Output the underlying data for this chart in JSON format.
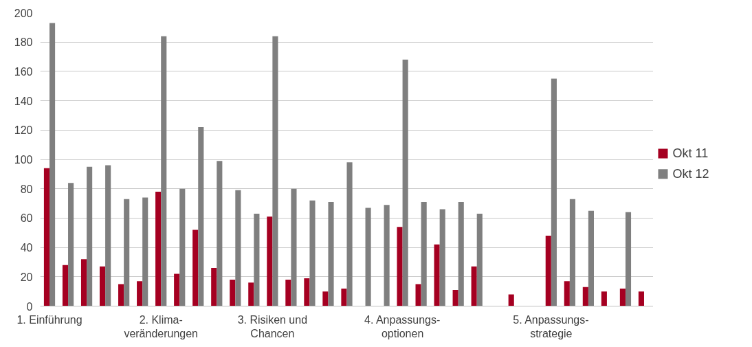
{
  "chart_data": {
    "type": "bar",
    "categories": [
      "1. Einführung",
      null,
      null,
      null,
      null,
      null,
      "2. Klima-\nveränderungen",
      null,
      null,
      null,
      null,
      null,
      "3. Risiken und\nChancen",
      null,
      null,
      null,
      null,
      null,
      null,
      "4. Anpassungs-\noptionen",
      null,
      null,
      null,
      null,
      null,
      null,
      null,
      "5. Anpassungs-\nstrategie",
      null,
      null,
      null,
      null,
      null
    ],
    "series": [
      {
        "name": "Okt 11",
        "color": "#a50021",
        "values": [
          94,
          28,
          32,
          27,
          15,
          17,
          78,
          22,
          52,
          26,
          18,
          16,
          61,
          18,
          19,
          10,
          12,
          null,
          null,
          54,
          15,
          42,
          11,
          27,
          null,
          8,
          null,
          48,
          17,
          13,
          10,
          12,
          10
        ]
      },
      {
        "name": "Okt 12",
        "color": "#7f7f7f",
        "values": [
          193,
          84,
          95,
          96,
          73,
          74,
          184,
          80,
          122,
          99,
          79,
          63,
          184,
          80,
          72,
          71,
          98,
          67,
          69,
          168,
          71,
          66,
          71,
          63,
          null,
          null,
          null,
          155,
          73,
          65,
          null,
          64,
          null
        ]
      }
    ],
    "ylim": [
      0,
      200
    ],
    "yticks": [
      0,
      20,
      40,
      60,
      80,
      100,
      120,
      140,
      160,
      180,
      200
    ],
    "grid": "y",
    "legend": "right"
  }
}
